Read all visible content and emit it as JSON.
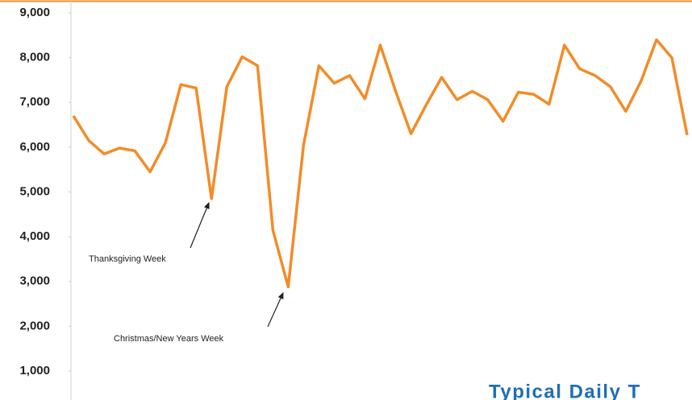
{
  "chart_data": {
    "type": "line",
    "title": "Typical Daily T",
    "categories": [
      null,
      null,
      null,
      null,
      null,
      null,
      null,
      null,
      null,
      null,
      null,
      null,
      null,
      null,
      null,
      null,
      null,
      null,
      null,
      null,
      null,
      null,
      null,
      null,
      null,
      null,
      null,
      null,
      null,
      null,
      null,
      null,
      null,
      null,
      null,
      null,
      null,
      null,
      null,
      null,
      null
    ],
    "series": [
      {
        "color": "#f28c28",
        "values": [
          6700,
          6150,
          5850,
          5980,
          5920,
          5450,
          6100,
          7400,
          7320,
          4850,
          7350,
          8020,
          7820,
          4150,
          2880,
          6050,
          7820,
          7430,
          7600,
          7080,
          8280,
          7250,
          6300,
          6950,
          7560,
          7060,
          7250,
          7060,
          6580,
          7230,
          7180,
          6960,
          8280,
          7750,
          7600,
          7350,
          6800,
          7480,
          8400,
          8000,
          6270
        ]
      }
    ],
    "ylim": [
      353,
      9288
    ],
    "yticks": [
      {
        "value": 1000,
        "label": "1,000"
      },
      {
        "value": 2000,
        "label": "2,000"
      },
      {
        "value": 3000,
        "label": "3,000"
      },
      {
        "value": 4000,
        "label": "4,000"
      },
      {
        "value": 5000,
        "label": "5,000"
      },
      {
        "value": 6000,
        "label": "6,000"
      },
      {
        "value": 7000,
        "label": "7,000"
      },
      {
        "value": 8000,
        "label": "8,000"
      },
      {
        "value": 9000,
        "label": "9,000"
      }
    ],
    "annotations": [
      "Thanksgiving Week",
      "Christmas/New Years Week"
    ],
    "grid": false
  }
}
